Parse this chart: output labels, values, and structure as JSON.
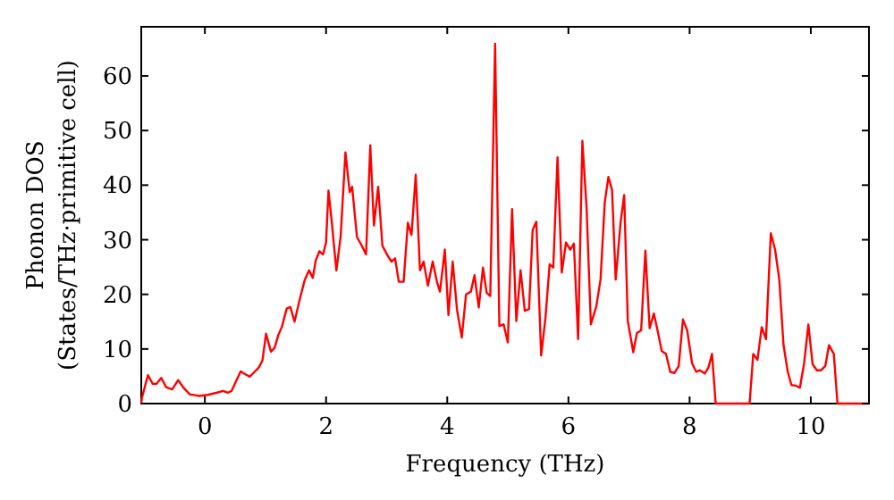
{
  "chart_data": {
    "type": "line",
    "xlabel": "Frequency (THz)",
    "ylabel": "Phonon DOS\n(States/THz·primitive cell)",
    "xlim": [
      -1.05,
      10.96
    ],
    "ylim": [
      0,
      69
    ],
    "xticks": [
      0,
      2,
      4,
      6,
      8,
      10
    ],
    "yticks": [
      0,
      10,
      20,
      30,
      40,
      50,
      60
    ],
    "grid": false,
    "marker": "none",
    "line_style": "solid",
    "series": [
      {
        "color": "#ff0000",
        "x": [
          -1.05,
          -1.04,
          -0.94,
          -0.86,
          -0.8,
          -0.72,
          -0.64,
          -0.54,
          -0.44,
          -0.36,
          -0.25,
          -0.1,
          0.05,
          0.2,
          0.3,
          0.38,
          0.44,
          0.59,
          0.74,
          0.89,
          0.95,
          1.01,
          1.09,
          1.15,
          1.21,
          1.27,
          1.35,
          1.41,
          1.48,
          1.57,
          1.65,
          1.72,
          1.78,
          1.83,
          1.89,
          1.95,
          2.0,
          2.04,
          2.1,
          2.17,
          2.24,
          2.32,
          2.39,
          2.43,
          2.51,
          2.59,
          2.66,
          2.73,
          2.79,
          2.86,
          2.93,
          3.01,
          3.08,
          3.14,
          3.2,
          3.28,
          3.35,
          3.41,
          3.48,
          3.55,
          3.61,
          3.68,
          3.76,
          3.83,
          3.88,
          3.96,
          4.02,
          4.09,
          4.16,
          4.24,
          4.31,
          4.39,
          4.45,
          4.52,
          4.59,
          4.65,
          4.71,
          4.79,
          4.86,
          4.93,
          5.0,
          5.07,
          5.14,
          5.21,
          5.28,
          5.35,
          5.41,
          5.47,
          5.55,
          5.62,
          5.69,
          5.75,
          5.82,
          5.89,
          5.96,
          6.03,
          6.09,
          6.16,
          6.23,
          6.3,
          6.37,
          6.46,
          6.53,
          6.6,
          6.66,
          6.72,
          6.78,
          6.86,
          6.92,
          6.98,
          7.07,
          7.13,
          7.2,
          7.27,
          7.34,
          7.41,
          7.48,
          7.54,
          7.61,
          7.68,
          7.75,
          7.82,
          7.89,
          7.96,
          8.04,
          8.11,
          8.17,
          8.25,
          8.31,
          8.37,
          8.43,
          8.99,
          9.05,
          9.12,
          9.19,
          9.26,
          9.34,
          9.41,
          9.48,
          9.55,
          9.62,
          9.68,
          9.75,
          9.82,
          9.89,
          9.96,
          10.03,
          10.1,
          10.17,
          10.24,
          10.3,
          10.38,
          10.44,
          10.96
        ],
        "values": [
          0,
          1,
          5.2,
          3.6,
          3.6,
          4.7,
          3,
          2.6,
          4.3,
          3,
          1.7,
          1.4,
          1.6,
          2,
          2.3,
          2,
          2.3,
          5.9,
          4.9,
          6.6,
          7.9,
          12.8,
          9.5,
          10.2,
          12.5,
          14,
          17.4,
          17.7,
          15,
          19.3,
          22.7,
          24.4,
          23,
          26.2,
          27.9,
          27.3,
          29.5,
          39,
          32.6,
          24.4,
          30.5,
          46,
          38.7,
          39.7,
          30.5,
          28.9,
          27.3,
          47.3,
          32.6,
          39.7,
          28.9,
          27.2,
          26,
          26.6,
          22.3,
          22.3,
          33.1,
          30.9,
          41.9,
          24.4,
          26,
          21.6,
          26,
          22.3,
          20.5,
          28.2,
          16.2,
          26,
          17.3,
          12.1,
          20,
          20.5,
          23.5,
          17.6,
          24.9,
          20.3,
          19.7,
          65.9,
          14.2,
          14.5,
          11.2,
          35.6,
          15.1,
          24.4,
          17,
          17.3,
          31.8,
          33.3,
          8.8,
          15.6,
          25.5,
          24.9,
          45.1,
          24,
          29.5,
          28.2,
          29.3,
          11.8,
          48.1,
          35.8,
          14.5,
          17.8,
          22.7,
          36.9,
          41.5,
          39.1,
          22.7,
          33.1,
          38.2,
          15.1,
          9.4,
          12.9,
          13.4,
          28,
          13.8,
          16.5,
          12.9,
          9.6,
          9.1,
          5.8,
          5.6,
          6.9,
          15.4,
          13.4,
          7.4,
          5.8,
          6.1,
          5.5,
          6.6,
          9.1,
          0,
          0,
          9.1,
          8,
          14,
          11.8,
          31.2,
          28.2,
          22.7,
          10.7,
          5.8,
          3.4,
          3.3,
          2.9,
          7.4,
          14.5,
          7.2,
          6.1,
          6.1,
          6.9,
          10.7,
          9.1,
          0,
          0
        ]
      }
    ]
  }
}
